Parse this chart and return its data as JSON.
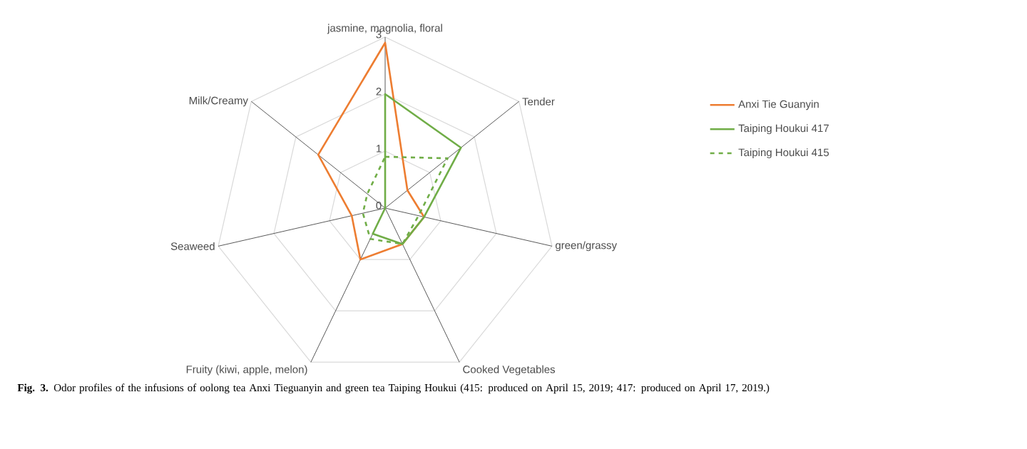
{
  "chart_data": {
    "type": "radar",
    "categories": [
      "jasmine, magnolia, floral",
      "Tender",
      "green/grassy",
      "Cooked Vegetables",
      "Fruity (kiwi, apple, melon)",
      "Seaweed",
      "Milk/Creamy"
    ],
    "series": [
      {
        "name": "Anxi Tie Guanyin",
        "color": "#ed7d31",
        "line_style": "solid",
        "values": [
          2.9,
          0.5,
          0.7,
          0.7,
          1.0,
          0.6,
          1.5
        ]
      },
      {
        "name": "Taiping Houkui 417",
        "color": "#70ad47",
        "line_style": "solid",
        "values": [
          2.0,
          1.7,
          0.7,
          0.7,
          0.5,
          0,
          0
        ]
      },
      {
        "name": "Taiping Houkui 415",
        "color": "#70ad47",
        "line_style": "dashed",
        "values": [
          0.9,
          1.4,
          0.6,
          0.7,
          0.6,
          0.4,
          0.4
        ]
      }
    ],
    "ylim": [
      0,
      3
    ],
    "yticks": [
      0,
      1,
      2,
      3
    ],
    "grid": true,
    "legend": "right",
    "annotations": [
      "**Fig. 3.** Odor profiles of the infusions of oolong tea Anxi Tieguanyin and green tea Taiping Houkui (415: produced on April 15, 2019; 417: produced on April 17, 2019.)"
    ]
  }
}
